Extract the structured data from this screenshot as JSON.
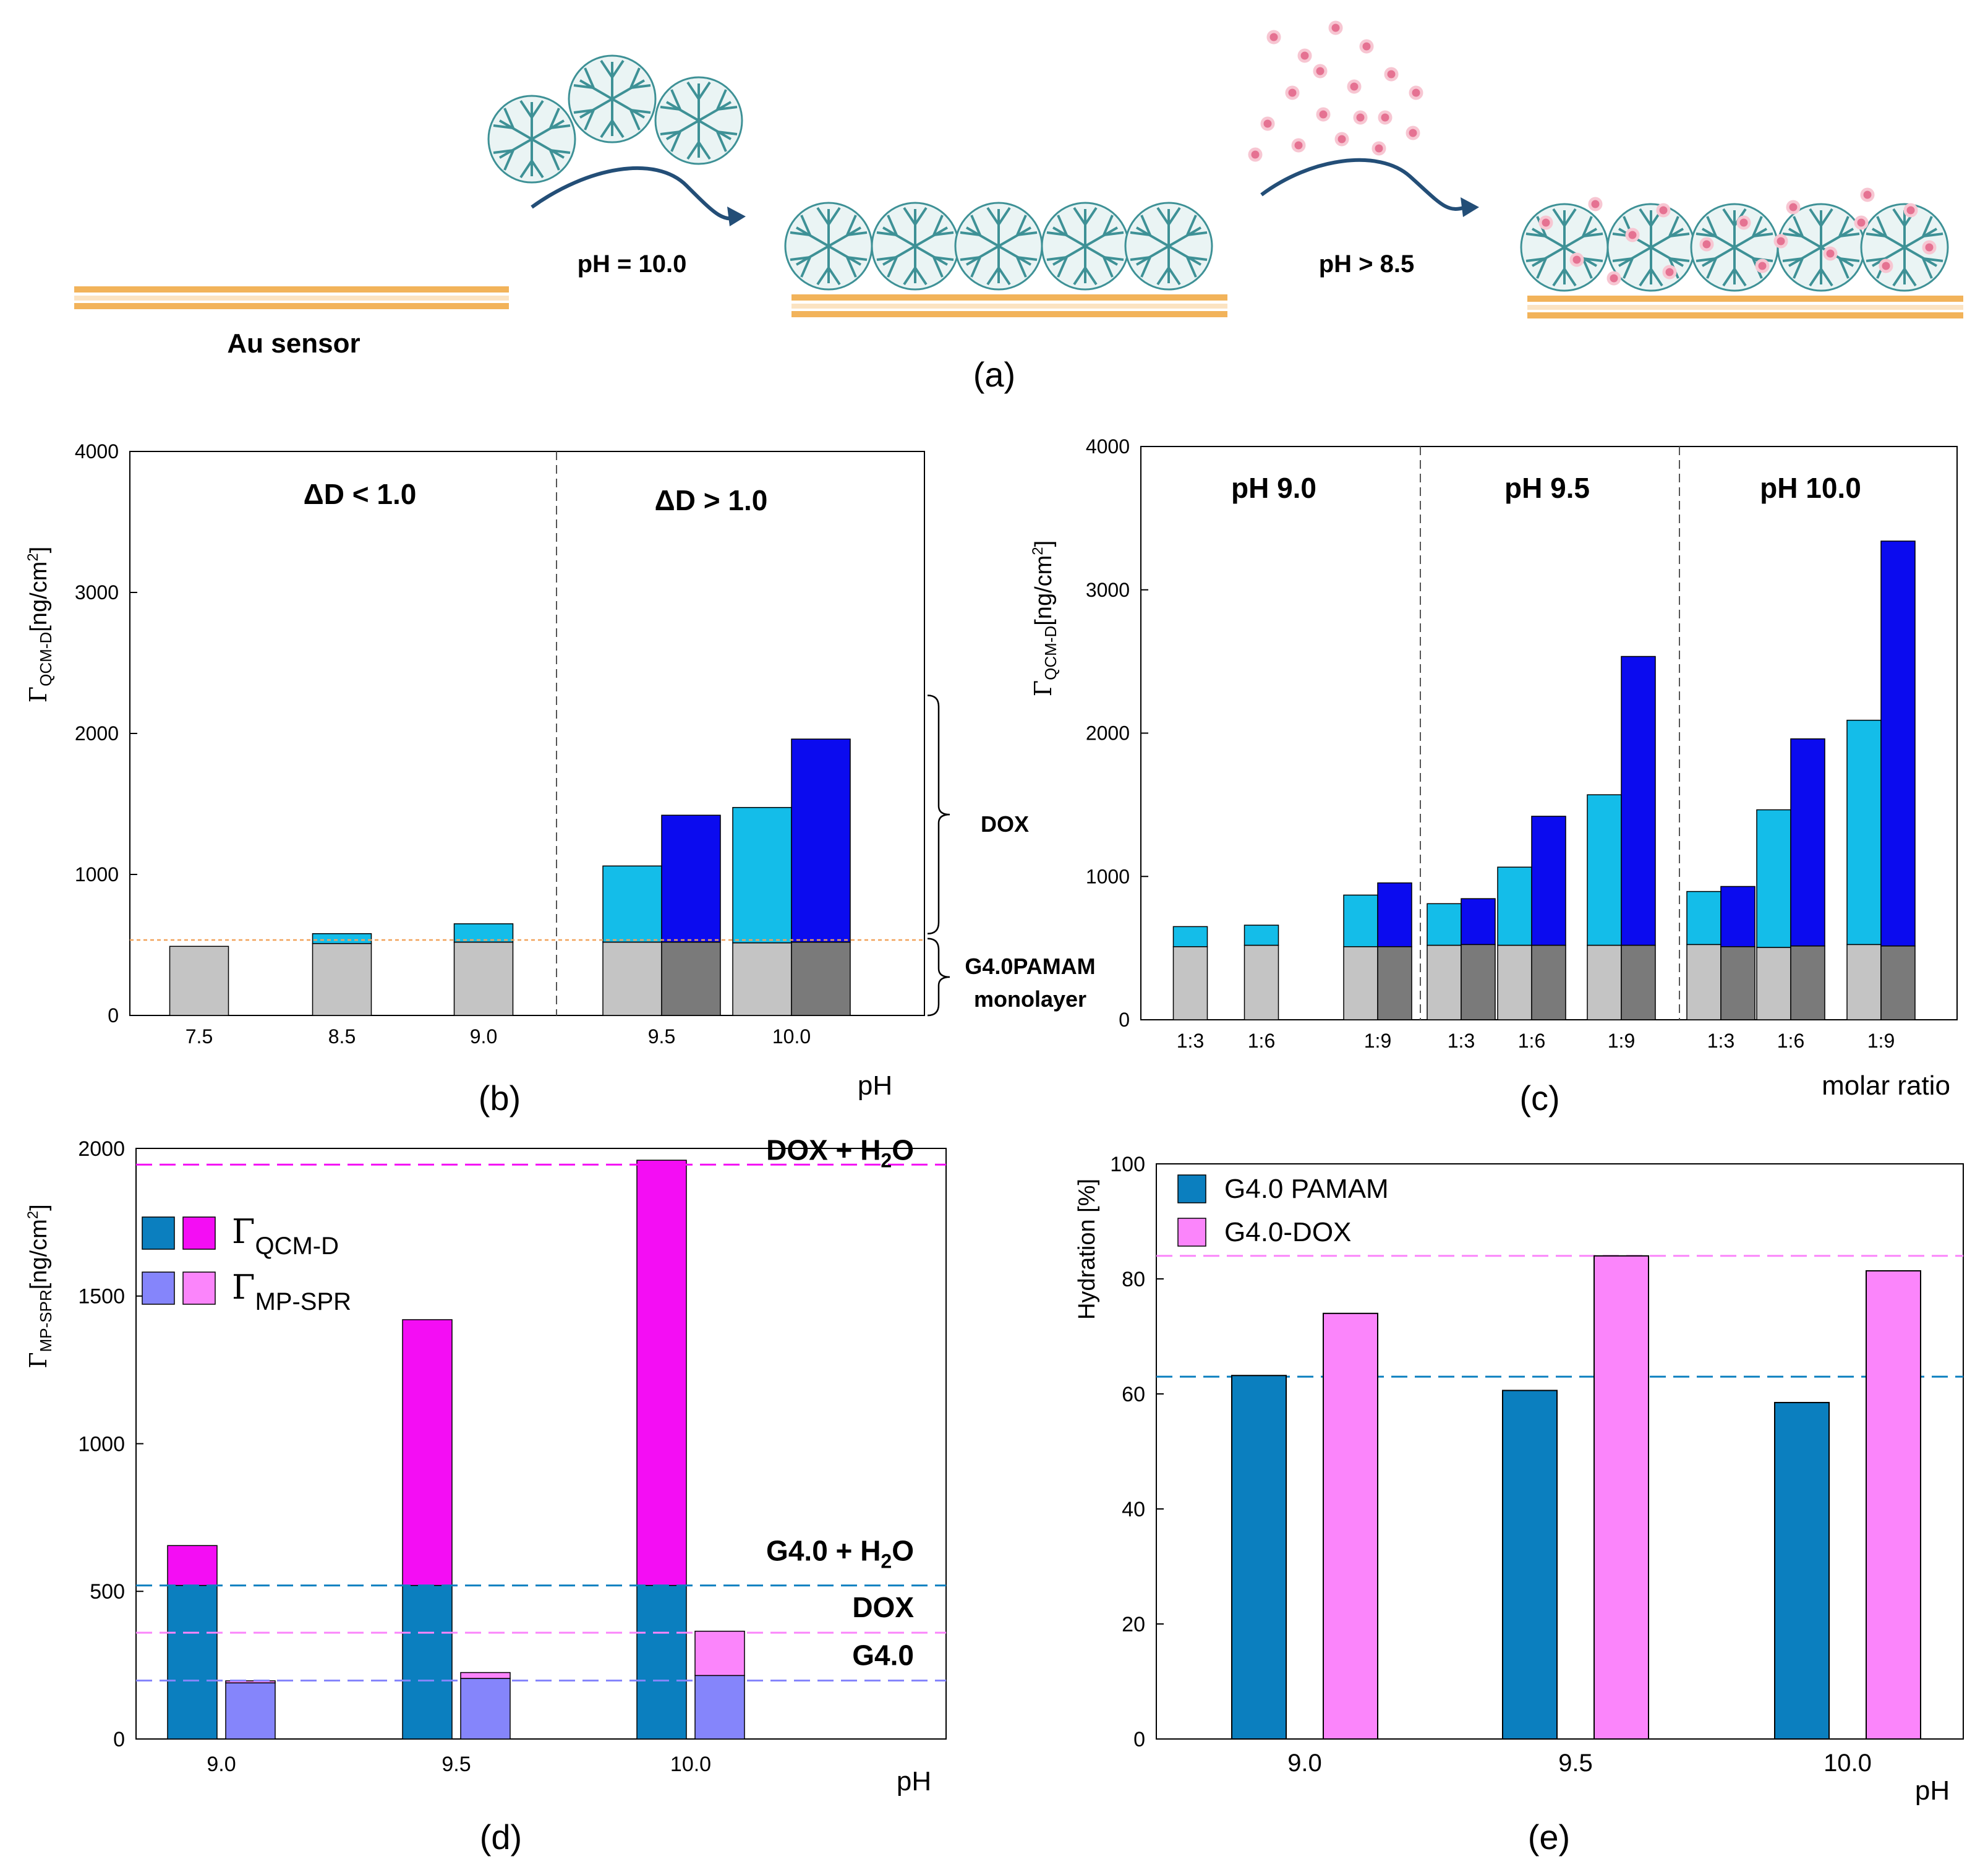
{
  "colors": {
    "light_blue": "#14bde9",
    "blue": "#0b0bef",
    "light_gray": "#c4c4c4",
    "dark_gray": "#7a7a7a",
    "teal": "#0b7fbf",
    "magenta": "#f40df4",
    "lavender": "#8585fb",
    "pink": "#fb85fb",
    "gold": "#f2b35a",
    "dendrimer": "#3e9196",
    "arrow": "#234e77",
    "dox_particle": "#e57292"
  },
  "panel_a": {
    "caption": "(a)",
    "sensor_label": "Au sensor",
    "step1_label": "pH = 10.0",
    "step2_label": "pH > 8.5",
    "icons": [
      "gold-sensor-icon",
      "dendrimer-icon",
      "arrow-icon",
      "dox-particle-icon"
    ]
  },
  "chart_data": [
    {
      "id": "b",
      "type": "bar",
      "caption": "(b)",
      "ylabel_main": "Γ",
      "ylabel_sub": "QCM-D",
      "ylabel_unit": "[ng/cm",
      "ylabel_sup": "2",
      "ylabel_close": "]",
      "xlabel": "pH",
      "ylim": [
        0,
        4000
      ],
      "yticks": [
        0,
        1000,
        2000,
        3000,
        4000
      ],
      "region_labels": [
        "ΔD < 1.0",
        "ΔD > 1.0"
      ],
      "brace_labels": {
        "dox": "DOX",
        "monolayer_line1": "G4.0PAMAM",
        "monolayer_line2": "monolayer"
      },
      "reference_line": 535,
      "groups": [
        {
          "label": "7.5",
          "bars": [
            {
              "base": 490,
              "top": 490,
              "base_color": "light_gray",
              "top_color": "light_blue"
            }
          ]
        },
        {
          "label": "8.5",
          "bars": [
            {
              "base": 510,
              "top": 580,
              "base_color": "light_gray",
              "top_color": "light_blue"
            }
          ]
        },
        {
          "label": "9.0",
          "bars": [
            {
              "base": 520,
              "top": 650,
              "base_color": "light_gray",
              "top_color": "light_blue"
            }
          ]
        },
        {
          "label": "9.5",
          "bars": [
            {
              "base": 520,
              "top": 1060,
              "base_color": "light_gray",
              "top_color": "light_blue"
            },
            {
              "base": 520,
              "top": 1420,
              "base_color": "dark_gray",
              "top_color": "blue"
            }
          ]
        },
        {
          "label": "10.0",
          "bars": [
            {
              "base": 515,
              "top": 1475,
              "base_color": "light_gray",
              "top_color": "light_blue"
            },
            {
              "base": 520,
              "top": 1960,
              "base_color": "dark_gray",
              "top_color": "blue"
            }
          ]
        }
      ]
    },
    {
      "id": "c",
      "type": "bar",
      "caption": "(c)",
      "ylabel_main": "Γ",
      "ylabel_sub": "QCM-D",
      "ylabel_unit": "[ng/cm",
      "ylabel_sup": "2",
      "ylabel_close": "]",
      "xlabel": "molar ratio",
      "ylim": [
        0,
        4000
      ],
      "yticks": [
        0,
        1000,
        2000,
        3000,
        4000
      ],
      "region_labels": [
        "pH 9.0",
        "pH 9.5",
        "pH 10.0"
      ],
      "groups": [
        {
          "label": "1:3",
          "bars": [
            {
              "base": 510,
              "top": 650,
              "base_color": "light_gray",
              "top_color": "light_blue"
            }
          ]
        },
        {
          "label": "1:6",
          "bars": [
            {
              "base": 520,
              "top": 660,
              "base_color": "light_gray",
              "top_color": "light_blue"
            }
          ]
        },
        {
          "label": "1:9",
          "bars": [
            {
              "base": 510,
              "top": 870,
              "base_color": "light_gray",
              "top_color": "light_blue"
            },
            {
              "base": 510,
              "top": 955,
              "base_color": "dark_gray",
              "top_color": "blue"
            }
          ]
        },
        {
          "label": "1:3",
          "bars": [
            {
              "base": 520,
              "top": 810,
              "base_color": "light_gray",
              "top_color": "light_blue"
            },
            {
              "base": 525,
              "top": 845,
              "base_color": "dark_gray",
              "top_color": "blue"
            }
          ]
        },
        {
          "label": "1:6",
          "bars": [
            {
              "base": 520,
              "top": 1065,
              "base_color": "light_gray",
              "top_color": "light_blue"
            },
            {
              "base": 520,
              "top": 1420,
              "base_color": "dark_gray",
              "top_color": "blue"
            }
          ]
        },
        {
          "label": "1:9",
          "bars": [
            {
              "base": 520,
              "top": 1570,
              "base_color": "light_gray",
              "top_color": "light_blue"
            },
            {
              "base": 520,
              "top": 2535,
              "base_color": "dark_gray",
              "top_color": "blue"
            }
          ]
        },
        {
          "label": "1:3",
          "bars": [
            {
              "base": 525,
              "top": 895,
              "base_color": "light_gray",
              "top_color": "light_blue"
            },
            {
              "base": 510,
              "top": 930,
              "base_color": "dark_gray",
              "top_color": "blue"
            }
          ]
        },
        {
          "label": "1:6",
          "bars": [
            {
              "base": 505,
              "top": 1465,
              "base_color": "light_gray",
              "top_color": "light_blue"
            },
            {
              "base": 515,
              "top": 1960,
              "base_color": "dark_gray",
              "top_color": "blue"
            }
          ]
        },
        {
          "label": "1:9",
          "bars": [
            {
              "base": 525,
              "top": 2090,
              "base_color": "light_gray",
              "top_color": "light_blue"
            },
            {
              "base": 515,
              "top": 3340,
              "base_color": "dark_gray",
              "top_color": "blue"
            }
          ]
        }
      ]
    },
    {
      "id": "d",
      "type": "bar",
      "caption": "(d)",
      "ylabel_main": "Γ",
      "ylabel_sub": "MP-SPR",
      "ylabel_unit": "[ng/cm",
      "ylabel_sup": "2",
      "ylabel_close": "]",
      "xlabel": "pH",
      "ylim": [
        0,
        2000
      ],
      "yticks": [
        0,
        500,
        1000,
        1500,
        2000
      ],
      "legend": [
        {
          "colors": [
            "teal",
            "magenta"
          ],
          "label_main": "Γ",
          "label_sub": "QCM-D"
        },
        {
          "colors": [
            "lavender",
            "pink"
          ],
          "label_main": "Γ",
          "label_sub": "MP-SPR"
        }
      ],
      "reference_lines": [
        {
          "value": 1945,
          "color": "magenta",
          "label_main": "DOX + H",
          "label_sub": "2",
          "label_end": "O"
        },
        {
          "value": 520,
          "color": "teal",
          "label_main": "G4.0 + H",
          "label_sub": "2",
          "label_end": "O"
        },
        {
          "value": 360,
          "color": "pink",
          "label_main": "DOX",
          "label_sub": "",
          "label_end": ""
        },
        {
          "value": 198,
          "color": "lavender",
          "label_main": "G4.0",
          "label_sub": "",
          "label_end": ""
        }
      ],
      "groups": [
        {
          "label": "9.0",
          "bars": [
            {
              "name": "QCM-D",
              "base": 520,
              "top": 655,
              "base_color": "teal",
              "top_color": "magenta"
            },
            {
              "name": "MP-SPR",
              "base": 190,
              "top": 197,
              "base_color": "lavender",
              "top_color": "pink"
            }
          ]
        },
        {
          "label": "9.5",
          "bars": [
            {
              "name": "QCM-D",
              "base": 520,
              "top": 1420,
              "base_color": "teal",
              "top_color": "magenta"
            },
            {
              "name": "MP-SPR",
              "base": 205,
              "top": 225,
              "base_color": "lavender",
              "top_color": "pink"
            }
          ]
        },
        {
          "label": "10.0",
          "bars": [
            {
              "name": "QCM-D",
              "base": 520,
              "top": 1960,
              "base_color": "teal",
              "top_color": "magenta"
            },
            {
              "name": "MP-SPR",
              "base": 215,
              "top": 365,
              "base_color": "lavender",
              "top_color": "pink"
            }
          ]
        }
      ]
    },
    {
      "id": "e",
      "type": "bar",
      "caption": "(e)",
      "ylabel": "Hydration [%]",
      "xlabel": "pH",
      "ylim": [
        0,
        100
      ],
      "yticks": [
        0,
        20,
        40,
        60,
        80,
        100
      ],
      "legend": [
        {
          "color": "teal",
          "label": "G4.0 PAMAM"
        },
        {
          "color": "pink",
          "label": "G4.0-DOX"
        }
      ],
      "reference_lines": [
        {
          "value": 84,
          "color": "pink"
        },
        {
          "value": 63,
          "color": "teal"
        }
      ],
      "categories": [
        "9.0",
        "9.5",
        "10.0"
      ],
      "series": [
        {
          "name": "G4.0 PAMAM",
          "color": "teal",
          "values": [
            63.2,
            60.6,
            58.5
          ]
        },
        {
          "name": "G4.0-DOX",
          "color": "pink",
          "values": [
            74,
            84,
            81.4
          ]
        }
      ]
    }
  ]
}
